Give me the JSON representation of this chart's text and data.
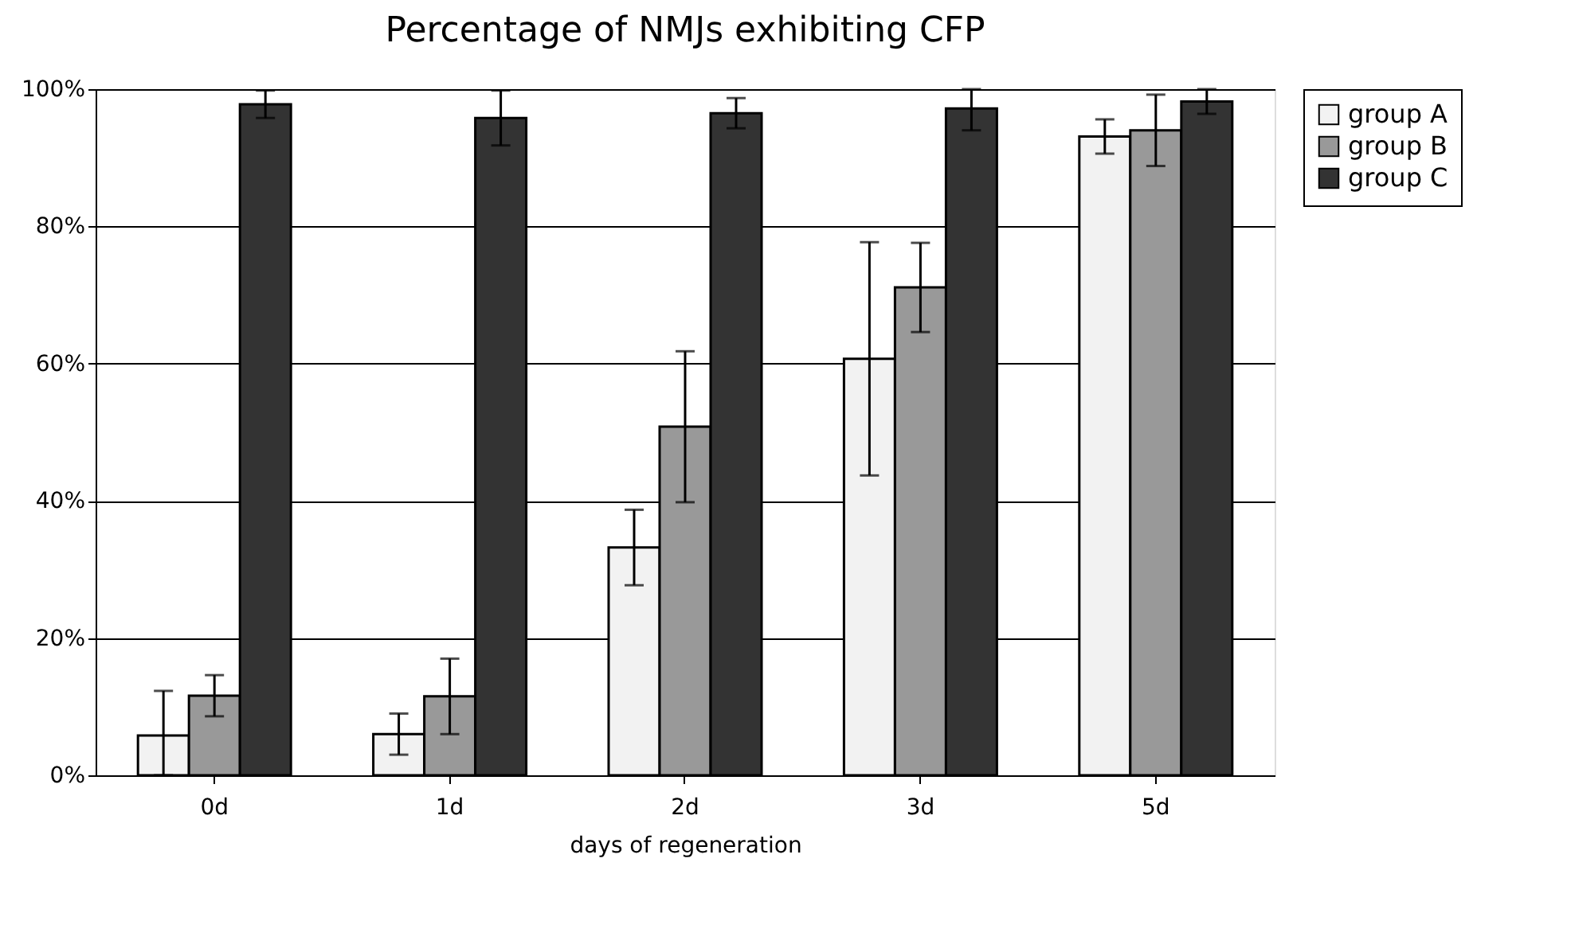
{
  "chart_data": {
    "type": "bar",
    "title": "Percentage of NMJs exhibiting CFP",
    "xlabel": "days of regeneration",
    "categories": [
      "0d",
      "1d",
      "2d",
      "3d",
      "5d"
    ],
    "series": [
      {
        "name": "group A",
        "color": "#f2f2f2",
        "values": [
          5.8,
          6,
          33.2,
          60.7,
          93.1
        ],
        "errors": [
          [
            0,
            12.3
          ],
          3,
          5.5,
          17,
          2.5
        ]
      },
      {
        "name": "group B",
        "color": "#999999",
        "values": [
          11.6,
          11.5,
          50.8,
          71.1,
          94
        ],
        "errors": [
          3,
          5.5,
          11,
          6.5,
          5.2
        ]
      },
      {
        "name": "group C",
        "color": "#333333",
        "values": [
          97.8,
          95.8,
          96.5,
          97.2,
          98.2
        ],
        "errors": [
          2,
          4,
          2.2,
          [
            94,
            100
          ],
          1.8
        ]
      }
    ],
    "ylim": [
      0,
      100
    ],
    "yticks": [
      {
        "value": 0,
        "label": "0%"
      },
      {
        "value": 20,
        "label": "20%"
      },
      {
        "value": 40,
        "label": "40%"
      },
      {
        "value": 60,
        "label": "60%"
      },
      {
        "value": 80,
        "label": "80%"
      },
      {
        "value": 100,
        "label": "100%"
      }
    ],
    "grid": "y",
    "legend": "right"
  }
}
